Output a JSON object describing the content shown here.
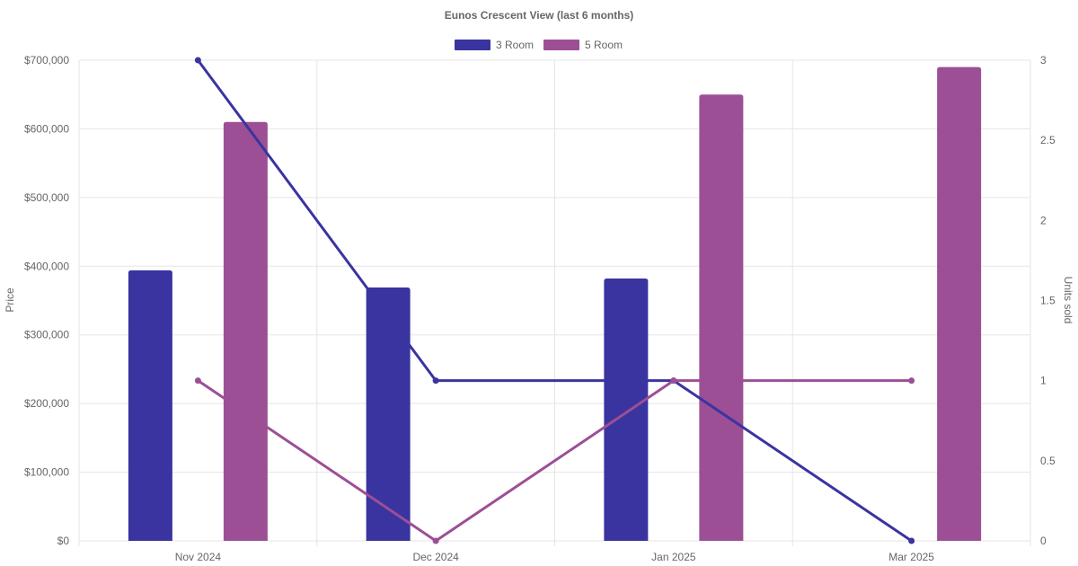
{
  "chart_data": {
    "type": "bar",
    "title": "Eunos Crescent View (last 6 months)",
    "categories": [
      "Nov 2024",
      "Dec 2024",
      "Jan 2025",
      "Mar 2025"
    ],
    "legend_position": "top",
    "grid": true,
    "y_left": {
      "label": "Price",
      "ylim": [
        0,
        700000
      ],
      "ticks": [
        0,
        100000,
        200000,
        300000,
        400000,
        500000,
        600000,
        700000
      ],
      "tick_labels": [
        "$0",
        "$100,000",
        "$200,000",
        "$300,000",
        "$400,000",
        "$500,000",
        "$600,000",
        "$700,000"
      ]
    },
    "y_right": {
      "label": "Units sold",
      "ylim": [
        0,
        3
      ],
      "ticks": [
        0,
        0.5,
        1,
        1.5,
        2,
        2.5,
        3
      ],
      "tick_labels": [
        "0",
        "0.5",
        "1",
        "1.5",
        "2",
        "2.5",
        "3"
      ]
    },
    "series": [
      {
        "name": "3 Room",
        "color": "#3a34a0",
        "bar_values": [
          394000,
          369000,
          382000,
          null
        ],
        "units_sold": [
          3,
          1,
          1,
          0
        ]
      },
      {
        "name": "5 Room",
        "color": "#9c4f95",
        "bar_values": [
          610000,
          null,
          650000,
          690000
        ],
        "units_sold": [
          1,
          0,
          1,
          1
        ]
      }
    ]
  }
}
